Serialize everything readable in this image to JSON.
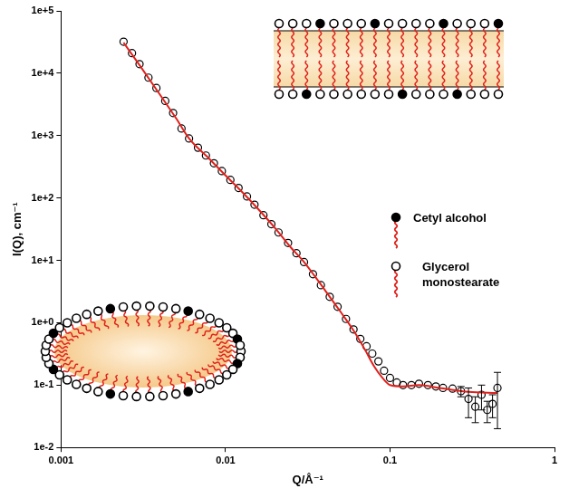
{
  "chart_data": {
    "type": "scatter",
    "log": true,
    "grid": false,
    "xlabel": "Q/Å⁻¹",
    "ylabel": "I(Q), cm⁻¹",
    "xlim": [
      0.001,
      1
    ],
    "xticks": [
      0.001,
      0.01,
      0.1,
      1
    ],
    "ylim": [
      0.01,
      100000
    ],
    "yticks": [
      {
        "value": 0.01,
        "label": "1e-2"
      },
      {
        "value": 0.1,
        "label": "1e-1"
      },
      {
        "value": 1,
        "label": "1e+0"
      },
      {
        "value": 10,
        "label": "1e+1"
      },
      {
        "value": 100,
        "label": "1e+2"
      },
      {
        "value": 1000,
        "label": "1e+3"
      },
      {
        "value": 10000,
        "label": "1e+4"
      },
      {
        "value": 100000,
        "label": "1e+5"
      }
    ],
    "annotations": [
      "Cetyl alcohol",
      "Glycerol monostearate"
    ],
    "series": [
      {
        "type": "scatter",
        "marker": "open circle",
        "color": "#000000",
        "x": [
          0.0024,
          0.0027,
          0.003,
          0.0034,
          0.0038,
          0.0043,
          0.0048,
          0.0054,
          0.006,
          0.0068,
          0.0076,
          0.0085,
          0.0095,
          0.0107,
          0.012,
          0.0135,
          0.015,
          0.017,
          0.019,
          0.021,
          0.024,
          0.027,
          0.03,
          0.034,
          0.038,
          0.043,
          0.048,
          0.054,
          0.06,
          0.066,
          0.072,
          0.078,
          0.085,
          0.092,
          0.1,
          0.11,
          0.12,
          0.135,
          0.15,
          0.17,
          0.19,
          0.21,
          0.24,
          0.27,
          0.3,
          0.33,
          0.36,
          0.39,
          0.42,
          0.45
        ],
        "values": [
          32000,
          21000,
          14000,
          8500,
          5800,
          3600,
          2300,
          1300,
          900,
          640,
          480,
          360,
          270,
          195,
          145,
          106,
          78,
          53,
          38,
          28,
          19,
          13,
          9.4,
          6,
          4,
          2.6,
          1.8,
          1.15,
          0.78,
          0.55,
          0.42,
          0.32,
          0.24,
          0.17,
          0.13,
          0.11,
          0.1,
          0.1,
          0.105,
          0.1,
          0.095,
          0.09,
          0.088,
          0.08,
          0.06,
          0.045,
          0.07,
          0.04,
          0.05,
          0.09
        ],
        "errors": [
          null,
          null,
          null,
          null,
          null,
          null,
          null,
          null,
          null,
          null,
          null,
          null,
          null,
          null,
          null,
          null,
          null,
          null,
          null,
          null,
          null,
          null,
          null,
          null,
          null,
          null,
          null,
          null,
          null,
          null,
          null,
          null,
          null,
          null,
          null,
          null,
          null,
          null,
          null,
          null,
          null,
          null,
          null,
          0.015,
          0.03,
          0.02,
          0.03,
          0.015,
          0.02,
          0.07
        ]
      },
      {
        "type": "line",
        "line_style": "solid",
        "color": "#e0201b",
        "x": [
          0.0024,
          0.003,
          0.004,
          0.005,
          0.006,
          0.008,
          0.01,
          0.013,
          0.016,
          0.02,
          0.025,
          0.03,
          0.035,
          0.04,
          0.05,
          0.06,
          0.07,
          0.08,
          0.09,
          0.1,
          0.12,
          0.15,
          0.2,
          0.3,
          0.45
        ],
        "values": [
          31000,
          13500,
          4500,
          1900,
          900,
          420,
          230,
          115,
          64,
          33,
          16,
          9.4,
          5.5,
          3.4,
          1.5,
          0.75,
          0.38,
          0.2,
          0.13,
          0.1,
          0.095,
          0.1,
          0.09,
          0.078,
          0.075
        ]
      }
    ]
  }
}
